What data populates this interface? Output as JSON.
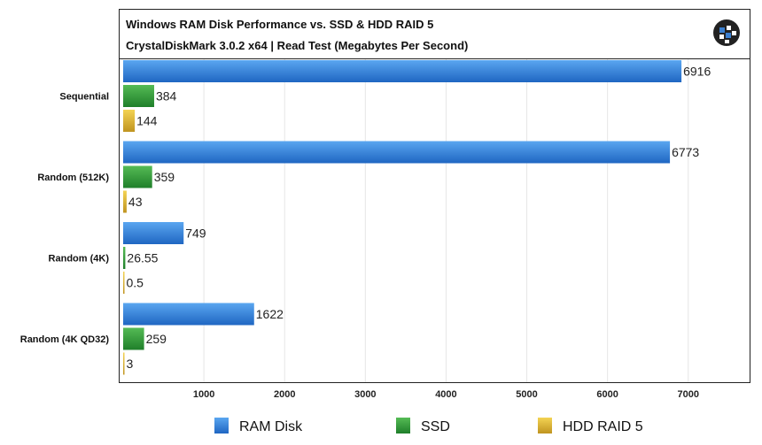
{
  "chart_data": {
    "type": "bar",
    "orientation": "horizontal",
    "title": "Windows RAM Disk Performance vs. SSD & HDD RAID 5",
    "subtitle": "CrystalDiskMark 3.0.2 x64 | Read Test (Megabytes Per Second)",
    "categories": [
      "Sequential",
      "Random (512K)",
      "Random (4K)",
      "Random (4K QD32)"
    ],
    "series": [
      {
        "name": "RAM Disk",
        "color": "#2f7fd8",
        "values": [
          6916,
          6773,
          749,
          1622
        ],
        "labels": [
          "6916",
          "6773",
          "749",
          "1622"
        ]
      },
      {
        "name": "SSD",
        "color": "#2f9a35",
        "values": [
          384,
          359,
          26.55,
          259
        ],
        "labels": [
          "384",
          "359",
          "26.55",
          "259"
        ]
      },
      {
        "name": "HDD RAID 5",
        "color": "#e2b52c",
        "values": [
          144,
          43,
          0.5,
          3
        ],
        "labels": [
          "144",
          "43",
          "0.5",
          "3"
        ]
      }
    ],
    "xticks": [
      "1000",
      "2000",
      "3000",
      "4000",
      "5000",
      "6000",
      "7000"
    ],
    "xlim": [
      0,
      7760
    ],
    "grid": true,
    "legend_position": "bottom",
    "logo": "globe-logo-icon"
  }
}
